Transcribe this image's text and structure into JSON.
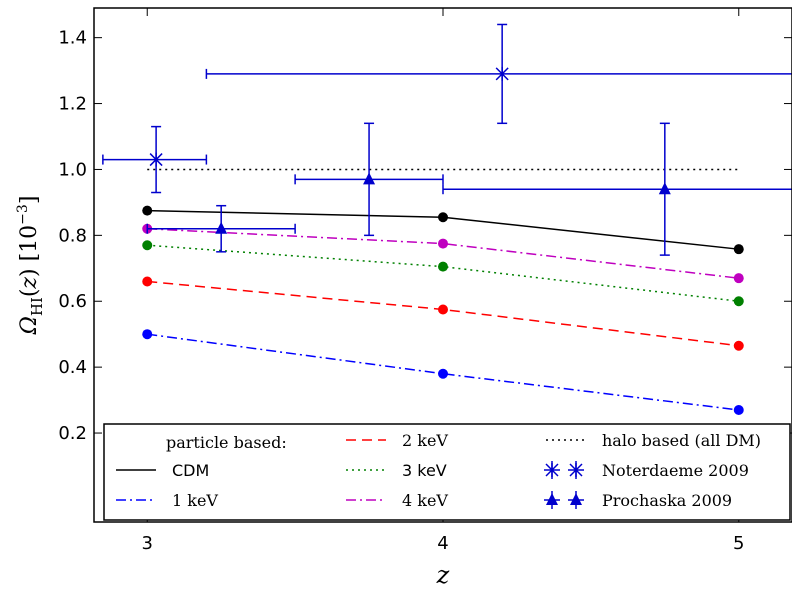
{
  "chart_data": {
    "type": "line",
    "xlabel": "z",
    "ylabel": "Ω_HI(z) [10^-3]",
    "xlim": [
      2.82,
      5.18
    ],
    "ylim": [
      -0.07,
      1.49
    ],
    "xticks": [
      3,
      4,
      5
    ],
    "yticks": [
      0.2,
      0.4,
      0.6,
      0.8,
      1.0,
      1.2,
      1.4
    ],
    "xtick_labels": [
      "3",
      "4",
      "5"
    ],
    "ytick_labels": [
      "0.2",
      "0.4",
      "0.6",
      "0.8",
      "1.0",
      "1.2",
      "1.4"
    ],
    "grid": false,
    "legend_position": "bottom",
    "legend_header": "particle based:",
    "x": [
      3,
      4,
      5
    ],
    "series": [
      {
        "name": "CDM",
        "values": [
          0.875,
          0.855,
          0.758
        ],
        "color": "#000000",
        "style": "solid"
      },
      {
        "name": "1 keV",
        "values": [
          0.5,
          0.38,
          0.27
        ],
        "color": "#0000ff",
        "style": "dashdot"
      },
      {
        "name": "2 keV",
        "values": [
          0.66,
          0.575,
          0.465
        ],
        "color": "#ff0000",
        "style": "dashed"
      },
      {
        "name": "3 keV",
        "values": [
          0.77,
          0.705,
          0.6
        ],
        "color": "#008000",
        "style": "dotted"
      },
      {
        "name": "4 keV",
        "values": [
          0.82,
          0.775,
          0.67
        ],
        "color": "#bf00bf",
        "style": "dashdot"
      }
    ],
    "halo_line": {
      "name": "halo based (all DM)",
      "x": [
        3,
        5
      ],
      "value": 1.0,
      "color": "#000000",
      "style": "dotted"
    },
    "observations": [
      {
        "name": "Noterdaeme 2009",
        "marker": "x-star",
        "color": "#0000cd",
        "points": [
          {
            "x": 3.03,
            "y": 1.03,
            "xlo": 2.85,
            "xhi": 3.2,
            "ylo": 0.93,
            "yhi": 1.13
          },
          {
            "x": 4.2,
            "y": 1.29,
            "xlo": 3.2,
            "xhi": 5.2,
            "ylo": 1.14,
            "yhi": 1.44
          }
        ]
      },
      {
        "name": "Prochaska 2009",
        "marker": "triangle",
        "color": "#0000cd",
        "points": [
          {
            "x": 3.25,
            "y": 0.82,
            "xlo": 3.0,
            "xhi": 3.5,
            "ylo": 0.75,
            "yhi": 0.89
          },
          {
            "x": 3.75,
            "y": 0.97,
            "xlo": 3.5,
            "xhi": 4.0,
            "ylo": 0.8,
            "yhi": 1.14
          },
          {
            "x": 4.75,
            "y": 0.94,
            "xlo": 4.0,
            "xhi": 5.2,
            "ylo": 0.74,
            "yhi": 1.14
          }
        ]
      }
    ]
  }
}
